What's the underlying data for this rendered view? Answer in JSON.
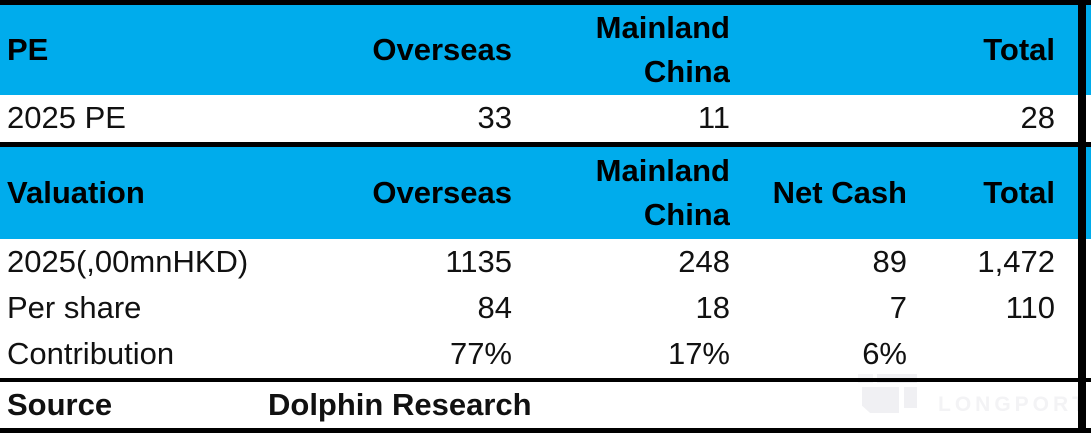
{
  "colors": {
    "header_bg": "#00ACEC",
    "border": "#000000",
    "row_bg": "#ffffff",
    "text": "#111111",
    "watermark": "#f3f3f5"
  },
  "pe_table": {
    "header": {
      "label": "PE",
      "overseas": "Overseas",
      "mainland_china": "Mainland China",
      "col4": "",
      "total": "Total"
    },
    "rows": [
      {
        "label": "2025 PE",
        "overseas": "33",
        "mainland_china": "11",
        "net_cash": "",
        "total": "28"
      }
    ]
  },
  "valuation_table": {
    "header": {
      "label": "Valuation",
      "overseas": "Overseas",
      "mainland_china": "Mainland China",
      "net_cash": "Net Cash",
      "total": "Total"
    },
    "rows": [
      {
        "label": "2025(,00mnHKD)",
        "overseas": "1135",
        "mainland_china": "248",
        "net_cash": "89",
        "total": "1,472"
      },
      {
        "label": "Per share",
        "overseas": "84",
        "mainland_china": "18",
        "net_cash": "7",
        "total": "110"
      },
      {
        "label": "Contribution",
        "overseas": "77%",
        "mainland_china": "17%",
        "net_cash": "6%",
        "total": ""
      }
    ]
  },
  "source_row": {
    "label": "Source",
    "value": "Dolphin Research"
  },
  "watermark": {
    "text": "LONGPORT"
  }
}
